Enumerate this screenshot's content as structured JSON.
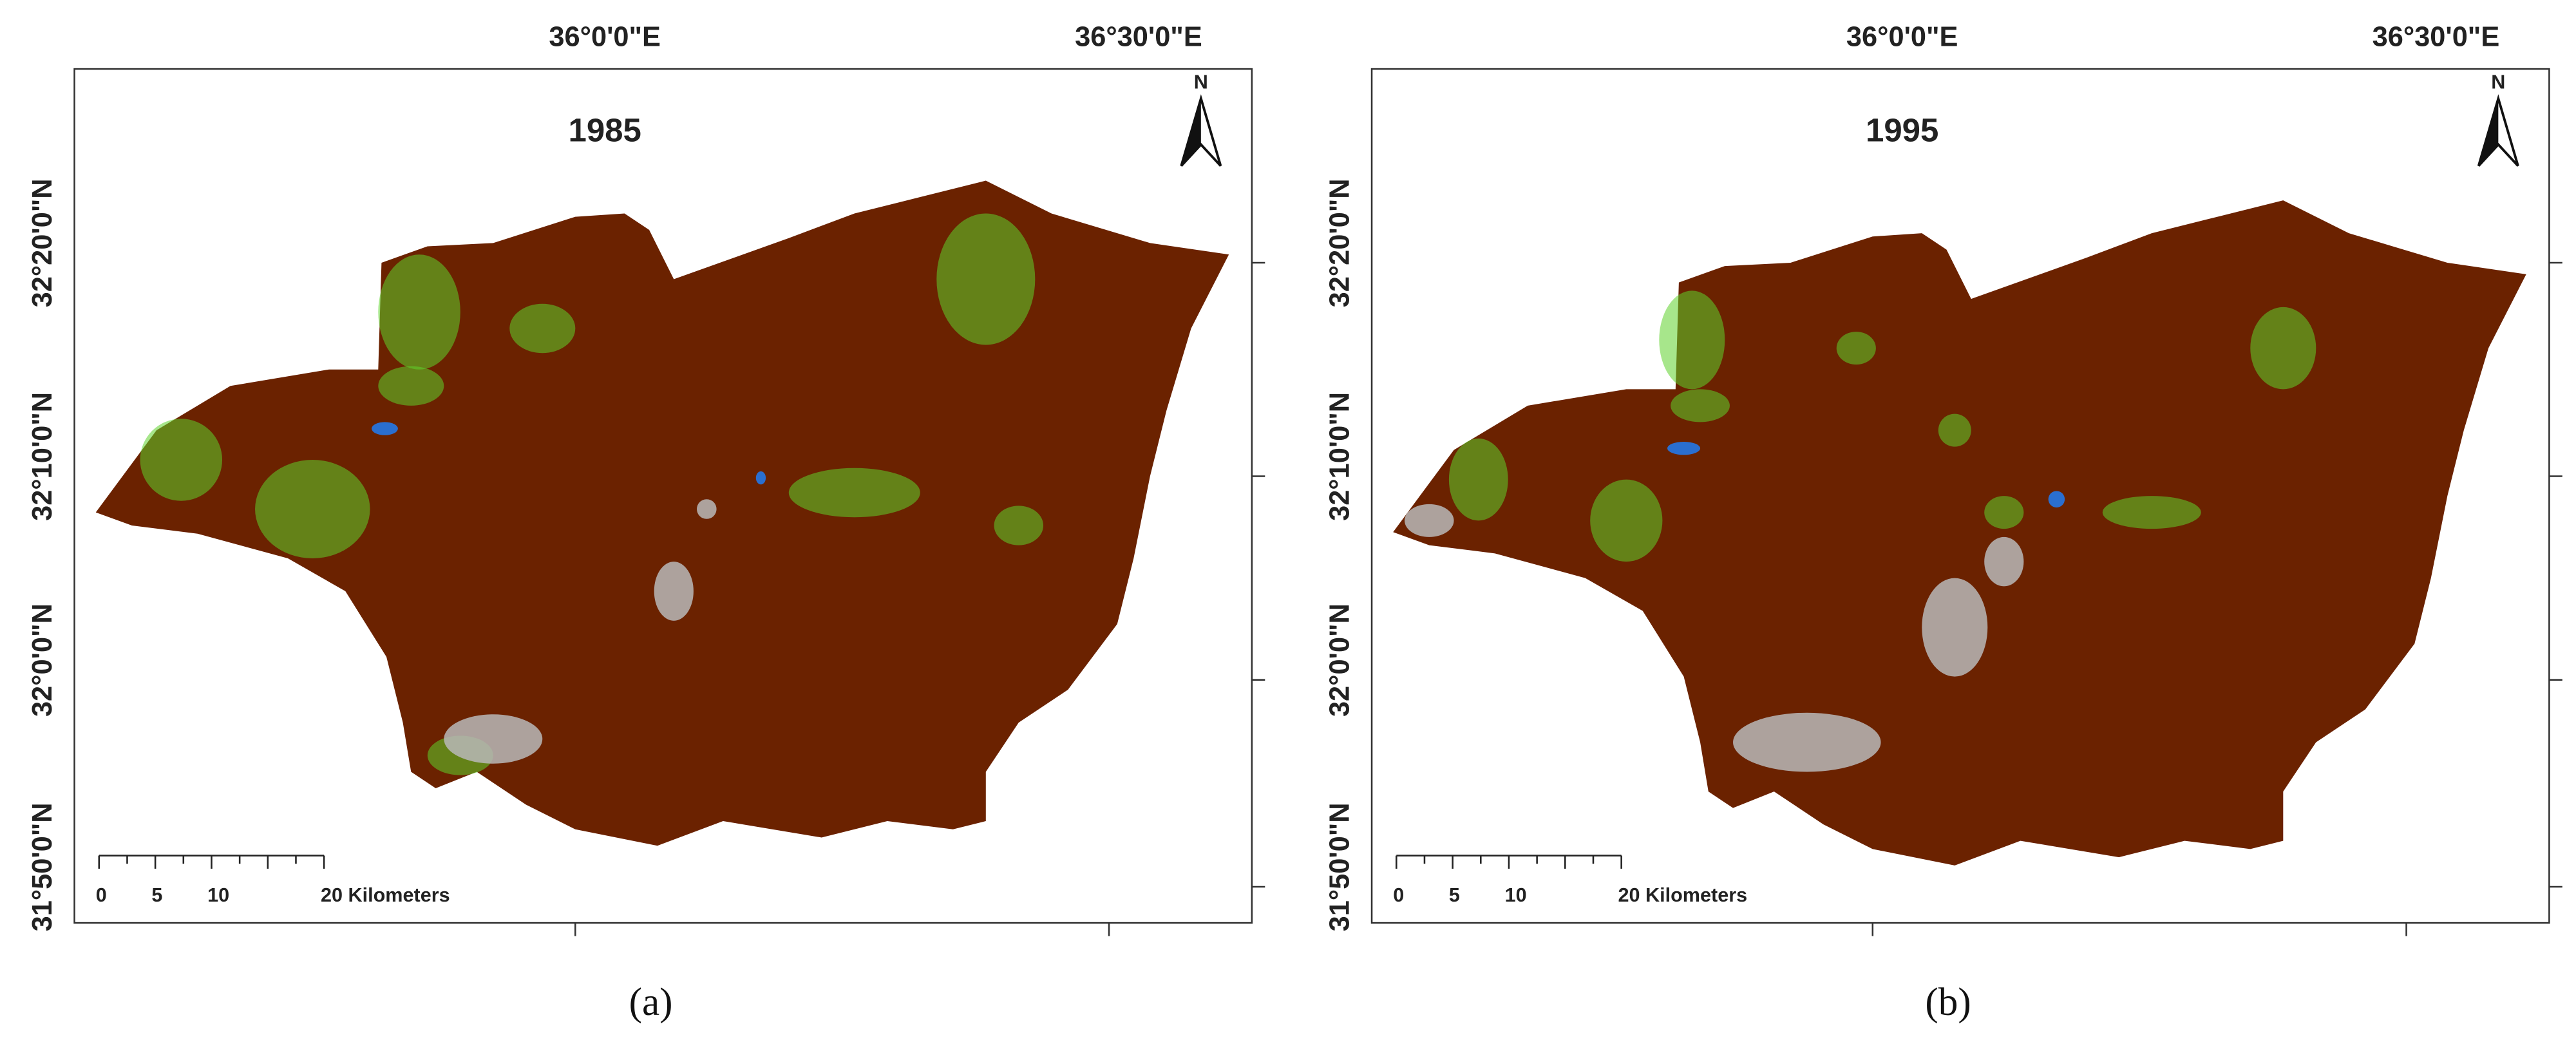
{
  "panels": [
    {
      "title": "1985",
      "caption": "(a)",
      "north": "N",
      "longitudes": [
        "36°0'0\"E",
        "36°30'0\"E"
      ],
      "latitudes": [
        "32°20'0\"N",
        "32°10'0\"N",
        "32°0'0\"N",
        "31°50'0\"N"
      ],
      "scale_labels": [
        "0",
        "5",
        "10",
        "20 Kilometers"
      ]
    },
    {
      "title": "1995",
      "caption": "(b)",
      "north": "N",
      "longitudes": [
        "36°0'0\"E",
        "36°30'0\"E"
      ],
      "latitudes": [
        "32°20'0\"N",
        "32°10'0\"N",
        "32°0'0\"N",
        "31°50'0\"N"
      ],
      "scale_labels": [
        "0",
        "5",
        "10",
        "20 Kilometers"
      ]
    }
  ]
}
